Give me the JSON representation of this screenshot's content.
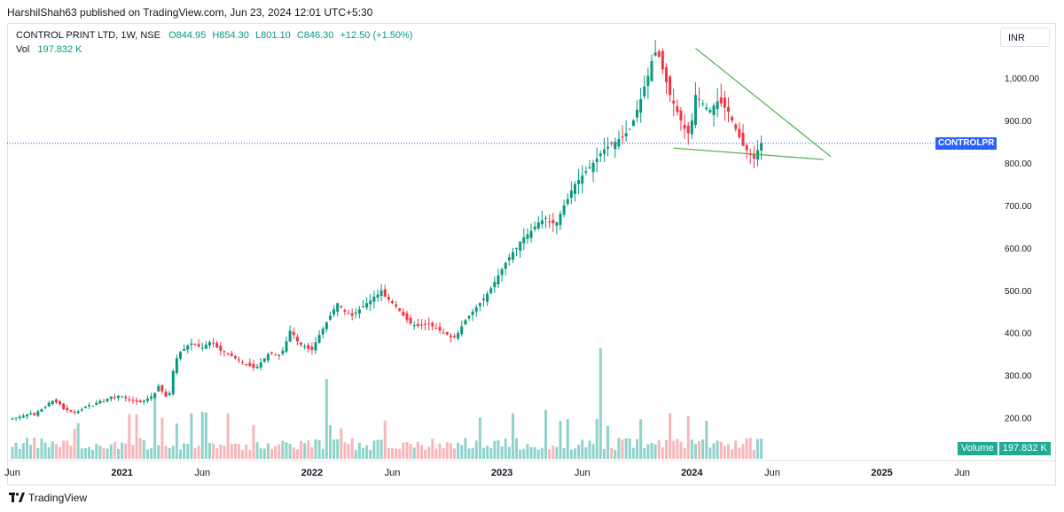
{
  "header": {
    "published": "HarshilShah63 published on TradingView.com, Jun 23, 2024 12:01 UTC+5:30"
  },
  "legend": {
    "symbol": "CONTROL PRINT LTD, 1W, NSE",
    "open": "O844.95",
    "high": "H854.30",
    "low": "L801.10",
    "close": "C846.30",
    "change": "+12.50 (+1.50%)",
    "vol_label": "Vol",
    "vol_value": "197.832 K"
  },
  "currency_button": "INR",
  "price_tag": "CONTROLPR",
  "volume_tag": {
    "label": "Volume",
    "value": "197.832 K"
  },
  "brand": "TradingView",
  "colors": {
    "up": "#089981",
    "down": "#f23645",
    "vol_up": "#8fd3cb",
    "vol_down": "#f7b6ba",
    "trendline": "#4caf50",
    "price_line": "#2962ff",
    "tag": "#2962ff"
  },
  "chart_data": {
    "type": "candlestick",
    "title": "CONTROL PRINT LTD, 1W, NSE",
    "ylim": [
      150,
      1100
    ],
    "y_ticks": [
      "1,000.00",
      "900.00",
      "800.00",
      "700.00",
      "600.00",
      "500.00",
      "400.00",
      "300.00",
      "200.00"
    ],
    "y_tick_values": [
      1000,
      900,
      800,
      700,
      600,
      500,
      400,
      300,
      200
    ],
    "x_ticks": [
      {
        "label": "Jun",
        "year": false,
        "t": 0
      },
      {
        "label": "2021",
        "year": true,
        "t": 30
      },
      {
        "label": "Jun",
        "year": false,
        "t": 52
      },
      {
        "label": "2022",
        "year": true,
        "t": 82
      },
      {
        "label": "Jun",
        "year": false,
        "t": 104
      },
      {
        "label": "2023",
        "year": true,
        "t": 134
      },
      {
        "label": "Jun",
        "year": false,
        "t": 156
      },
      {
        "label": "2024",
        "year": true,
        "t": 186
      },
      {
        "label": "Jun",
        "year": false,
        "t": 208
      },
      {
        "label": "2025",
        "year": true,
        "t": 238
      },
      {
        "label": "Jun",
        "year": false,
        "t": 260
      }
    ],
    "close_series": [
      198,
      200,
      202,
      205,
      208,
      210,
      206,
      215,
      220,
      225,
      235,
      240,
      236,
      232,
      220,
      218,
      215,
      212,
      215,
      220,
      226,
      230,
      228,
      235,
      240,
      238,
      245,
      250,
      248,
      252,
      250,
      246,
      242,
      240,
      238,
      236,
      240,
      245,
      250,
      258,
      275,
      262,
      250,
      258,
      310,
      340,
      355,
      362,
      370,
      375,
      372,
      368,
      365,
      372,
      378,
      375,
      365,
      358,
      355,
      350,
      345,
      340,
      336,
      330,
      325,
      322,
      318,
      320,
      330,
      340,
      350,
      352,
      348,
      346,
      358,
      380,
      405,
      395,
      380,
      372,
      368,
      362,
      360,
      378,
      395,
      410,
      425,
      440,
      455,
      470,
      460,
      450,
      445,
      440,
      448,
      455,
      462,
      470,
      476,
      485,
      490,
      500,
      485,
      478,
      470,
      462,
      452,
      440,
      430,
      422,
      418,
      416,
      418,
      420,
      420,
      415,
      410,
      405,
      400,
      396,
      390,
      390,
      400,
      415,
      430,
      440,
      450,
      460,
      470,
      480,
      492,
      505,
      520,
      535,
      550,
      565,
      578,
      590,
      600,
      615,
      625,
      632,
      640,
      650,
      660,
      665,
      670,
      662,
      658,
      660,
      680,
      700,
      715,
      735,
      750,
      760,
      770,
      780,
      790,
      800,
      810,
      822,
      832,
      838,
      845,
      850,
      856,
      860,
      870,
      880,
      900,
      925,
      950,
      980,
      1005,
      1040,
      1060,
      1050,
      1020,
      990,
      960,
      940,
      920,
      900,
      880,
      870,
      900,
      960,
      950,
      940,
      930,
      925,
      935,
      945,
      940,
      930,
      920,
      900,
      880,
      860,
      840,
      830,
      820,
      810,
      830,
      846
    ],
    "volume_relative": "volume bars scaled to max weekly volume; spike near Aug 2023",
    "trendlines": [
      {
        "name": "upper",
        "from": [
          187,
          1070
        ],
        "to": [
          224,
          815
        ]
      },
      {
        "name": "lower",
        "from": [
          181,
          835
        ],
        "to": [
          222,
          808
        ]
      }
    ],
    "last_price": 846.3
  }
}
